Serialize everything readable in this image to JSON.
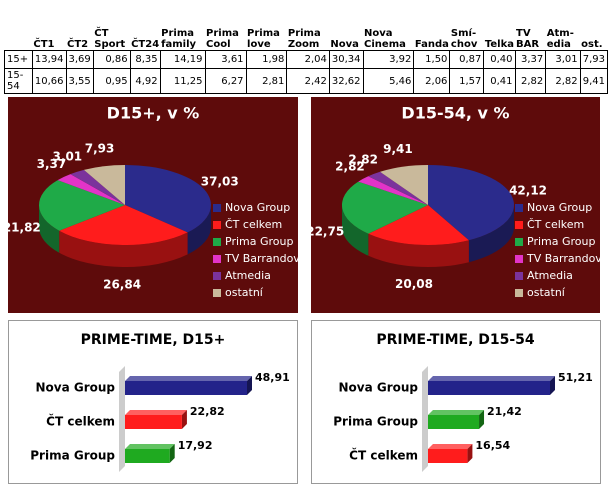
{
  "table": {
    "header": [
      "ČT1",
      "ČT2",
      "ČT Sport",
      "ČT24",
      "Prima family",
      "Prima Cool",
      "Prima love",
      "Prima Zoom",
      "Nova",
      "Nova Cinema",
      "Fanda",
      "Smí-chov",
      "Telka",
      "TV BAR",
      "Atm-edia",
      "ost."
    ],
    "rows": [
      {
        "label": "15+",
        "cells": [
          "13,94",
          "3,69",
          "0,86",
          "8,35",
          "14,19",
          "3,61",
          "1,98",
          "2,04",
          "30,34",
          "3,92",
          "1,50",
          "0,87",
          "0,40",
          "3,37",
          "3,01",
          "7,93"
        ]
      },
      {
        "label": "15-54",
        "cells": [
          "10,66",
          "3,55",
          "0,95",
          "4,92",
          "11,25",
          "6,27",
          "2,81",
          "2,42",
          "32,62",
          "5,46",
          "2,06",
          "1,57",
          "0,41",
          "2,82",
          "2,82",
          "9,41"
        ]
      }
    ]
  },
  "chart_data": [
    {
      "type": "pie",
      "title": "D15+, v %",
      "categories": [
        "Nova Group",
        "ČT celkem",
        "Prima Group",
        "TV Barrandov",
        "Atmedia",
        "ostatní"
      ],
      "values": [
        37.03,
        26.84,
        21.82,
        3.37,
        3.01,
        7.93
      ],
      "value_labels": [
        "37,03",
        "26,84",
        "21,82",
        "3,37",
        "3,01",
        "7,93"
      ],
      "colors": [
        "#2b2b8c",
        "#ff1c1c",
        "#1faa48",
        "#e234c8",
        "#7b339c",
        "#c9b99b"
      ],
      "legend": "right"
    },
    {
      "type": "pie",
      "title": "D15-54, v %",
      "categories": [
        "Nova Group",
        "ČT celkem",
        "Prima Group",
        "TV Barrandov",
        "Atmedia",
        "ostatní"
      ],
      "values": [
        42.12,
        20.08,
        22.75,
        2.82,
        2.82,
        9.41
      ],
      "value_labels": [
        "42,12",
        "20,08",
        "22,75",
        "2,82",
        "2,82",
        "9,41"
      ],
      "colors": [
        "#2b2b8c",
        "#ff1c1c",
        "#1faa48",
        "#e234c8",
        "#7b339c",
        "#c9b99b"
      ],
      "legend": "right"
    },
    {
      "type": "hbar",
      "title": "PRIME-TIME, D15+",
      "categories": [
        "Nova Group",
        "ČT celkem",
        "Prima Group"
      ],
      "values": [
        48.91,
        22.82,
        17.92
      ],
      "value_labels": [
        "48,91",
        "22,82",
        "17,92"
      ],
      "colors": [
        "#23238a",
        "#ff1c1c",
        "#1faa20"
      ]
    },
    {
      "type": "hbar",
      "title": "PRIME-TIME, D15-54",
      "categories": [
        "Nova Group",
        "Prima Group",
        "ČT celkem"
      ],
      "values": [
        51.21,
        21.42,
        16.54
      ],
      "value_labels": [
        "51,21",
        "21,42",
        "16,54"
      ],
      "colors": [
        "#23238a",
        "#1faa20",
        "#ff1c1c"
      ]
    }
  ]
}
